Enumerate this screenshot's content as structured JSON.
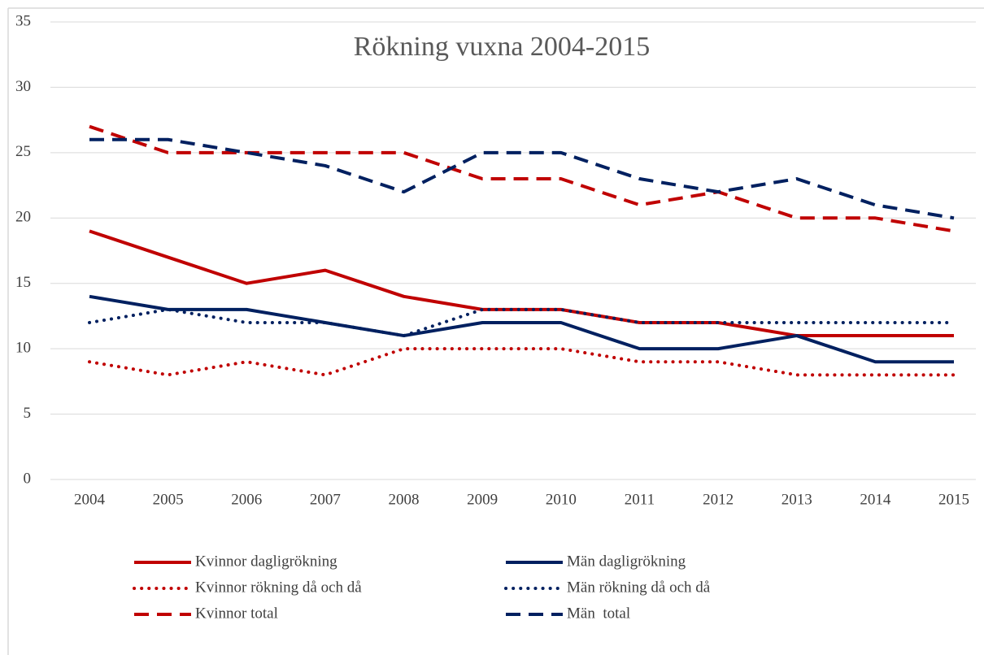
{
  "chart_data": {
    "type": "line",
    "title": "Rökning vuxna 2004-2015",
    "categories": [
      "2004",
      "2005",
      "2006",
      "2007",
      "2008",
      "2009",
      "2010",
      "2011",
      "2012",
      "2013",
      "2014",
      "2015"
    ],
    "ylim": [
      0,
      35
    ],
    "yticks": [
      0,
      5,
      10,
      15,
      20,
      25,
      30,
      35
    ],
    "grid": true,
    "legend": "bottom",
    "series": [
      {
        "name": "Kvinnor dagligrökning",
        "color": "#c00000",
        "dash": "solid",
        "values": [
          19,
          17,
          15,
          16,
          14,
          13,
          13,
          12,
          12,
          11,
          11,
          11
        ]
      },
      {
        "name": "Män dagligrökning",
        "color": "#002060",
        "dash": "solid",
        "values": [
          14,
          13,
          13,
          12,
          11,
          12,
          12,
          10,
          10,
          11,
          9,
          9
        ]
      },
      {
        "name": "Kvinnor rökning då och då",
        "color": "#c00000",
        "dash": "dot",
        "values": [
          9,
          8,
          9,
          8,
          10,
          10,
          10,
          9,
          9,
          8,
          8,
          8
        ]
      },
      {
        "name": "Män rökning då och då",
        "color": "#002060",
        "dash": "dot",
        "values": [
          12,
          13,
          12,
          12,
          11,
          13,
          13,
          12,
          12,
          12,
          12,
          12
        ]
      },
      {
        "name": "Kvinnor total",
        "color": "#c00000",
        "dash": "dash",
        "values": [
          27,
          25,
          25,
          25,
          25,
          23,
          23,
          21,
          22,
          20,
          20,
          19
        ]
      },
      {
        "name": "Män  total",
        "color": "#002060",
        "dash": "dash",
        "values": [
          26,
          26,
          25,
          24,
          22,
          25,
          25,
          23,
          22,
          23,
          21,
          20
        ]
      }
    ]
  }
}
